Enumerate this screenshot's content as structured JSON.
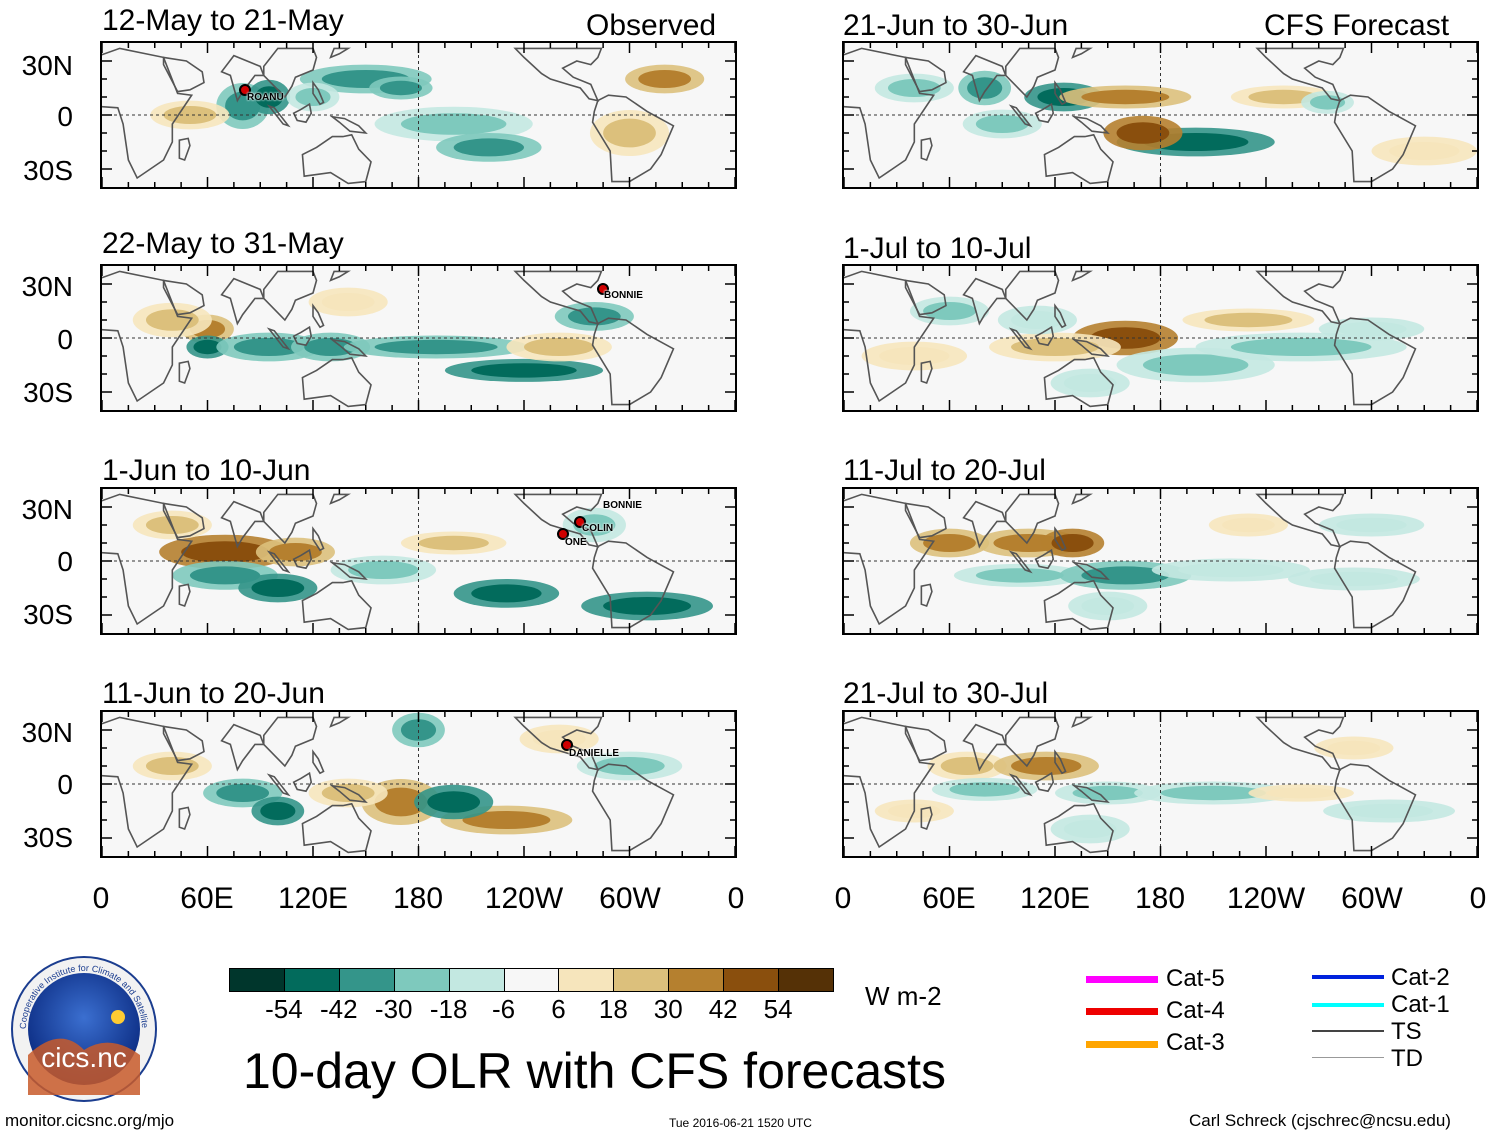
{
  "main_title": "10-day OLR with CFS forecasts",
  "column_labels": {
    "observed": "Observed",
    "forecast": "CFS Forecast"
  },
  "observed_panels": [
    {
      "title": "12-May to 21-May",
      "storms": [
        {
          "name": "ROANU"
        }
      ]
    },
    {
      "title": "22-May to 31-May",
      "storms": [
        {
          "name": "BONNIE"
        }
      ]
    },
    {
      "title": "1-Jun to 10-Jun",
      "storms": [
        {
          "name": "BONNIE"
        },
        {
          "name": "COLIN"
        },
        {
          "name": "ONE"
        }
      ]
    },
    {
      "title": "11-Jun to 20-Jun",
      "storms": [
        {
          "name": "DANIELLE"
        }
      ]
    }
  ],
  "forecast_panels": [
    {
      "title": "21-Jun to 30-Jun"
    },
    {
      "title": "1-Jul to 10-Jul"
    },
    {
      "title": "11-Jul to 20-Jul"
    },
    {
      "title": "21-Jul to 30-Jul"
    }
  ],
  "lat_labels": [
    "30N",
    "0",
    "30S"
  ],
  "lon_labels": [
    "0",
    "60E",
    "120E",
    "180",
    "120W",
    "60W",
    "0"
  ],
  "colorbar": {
    "unit": "W m-2",
    "ticks": [
      "-54",
      "-42",
      "-30",
      "-18",
      "-6",
      "6",
      "18",
      "30",
      "42",
      "54"
    ],
    "colors": [
      "#00362c",
      "#026b5c",
      "#34958a",
      "#7ec9bd",
      "#c3e8e1",
      "#f7f7f7",
      "#f6e5bc",
      "#dcc07c",
      "#b5802f",
      "#8a4f0d",
      "#553106"
    ]
  },
  "legend": [
    {
      "label": "Cat-5",
      "color": "#ff00ff"
    },
    {
      "label": "Cat-4",
      "color": "#ee0000"
    },
    {
      "label": "Cat-3",
      "color": "#ffa500"
    },
    {
      "label": "Cat-2",
      "color": "#0022dd"
    },
    {
      "label": "Cat-1",
      "color": "#00ffff"
    },
    {
      "label": "TS",
      "color": "#444444"
    },
    {
      "label": "TD",
      "color": "#999999"
    }
  ],
  "logo": {
    "text": "cics.nc",
    "ring_text": "Cooperative Institute for Climate and Satellites"
  },
  "footer": {
    "left": "monitor.cicsnc.org/mjo",
    "center": "Tue 2016-06-21 1520 UTC",
    "right": "Carl Schreck (cjschrec@ncsu.edu)"
  }
}
